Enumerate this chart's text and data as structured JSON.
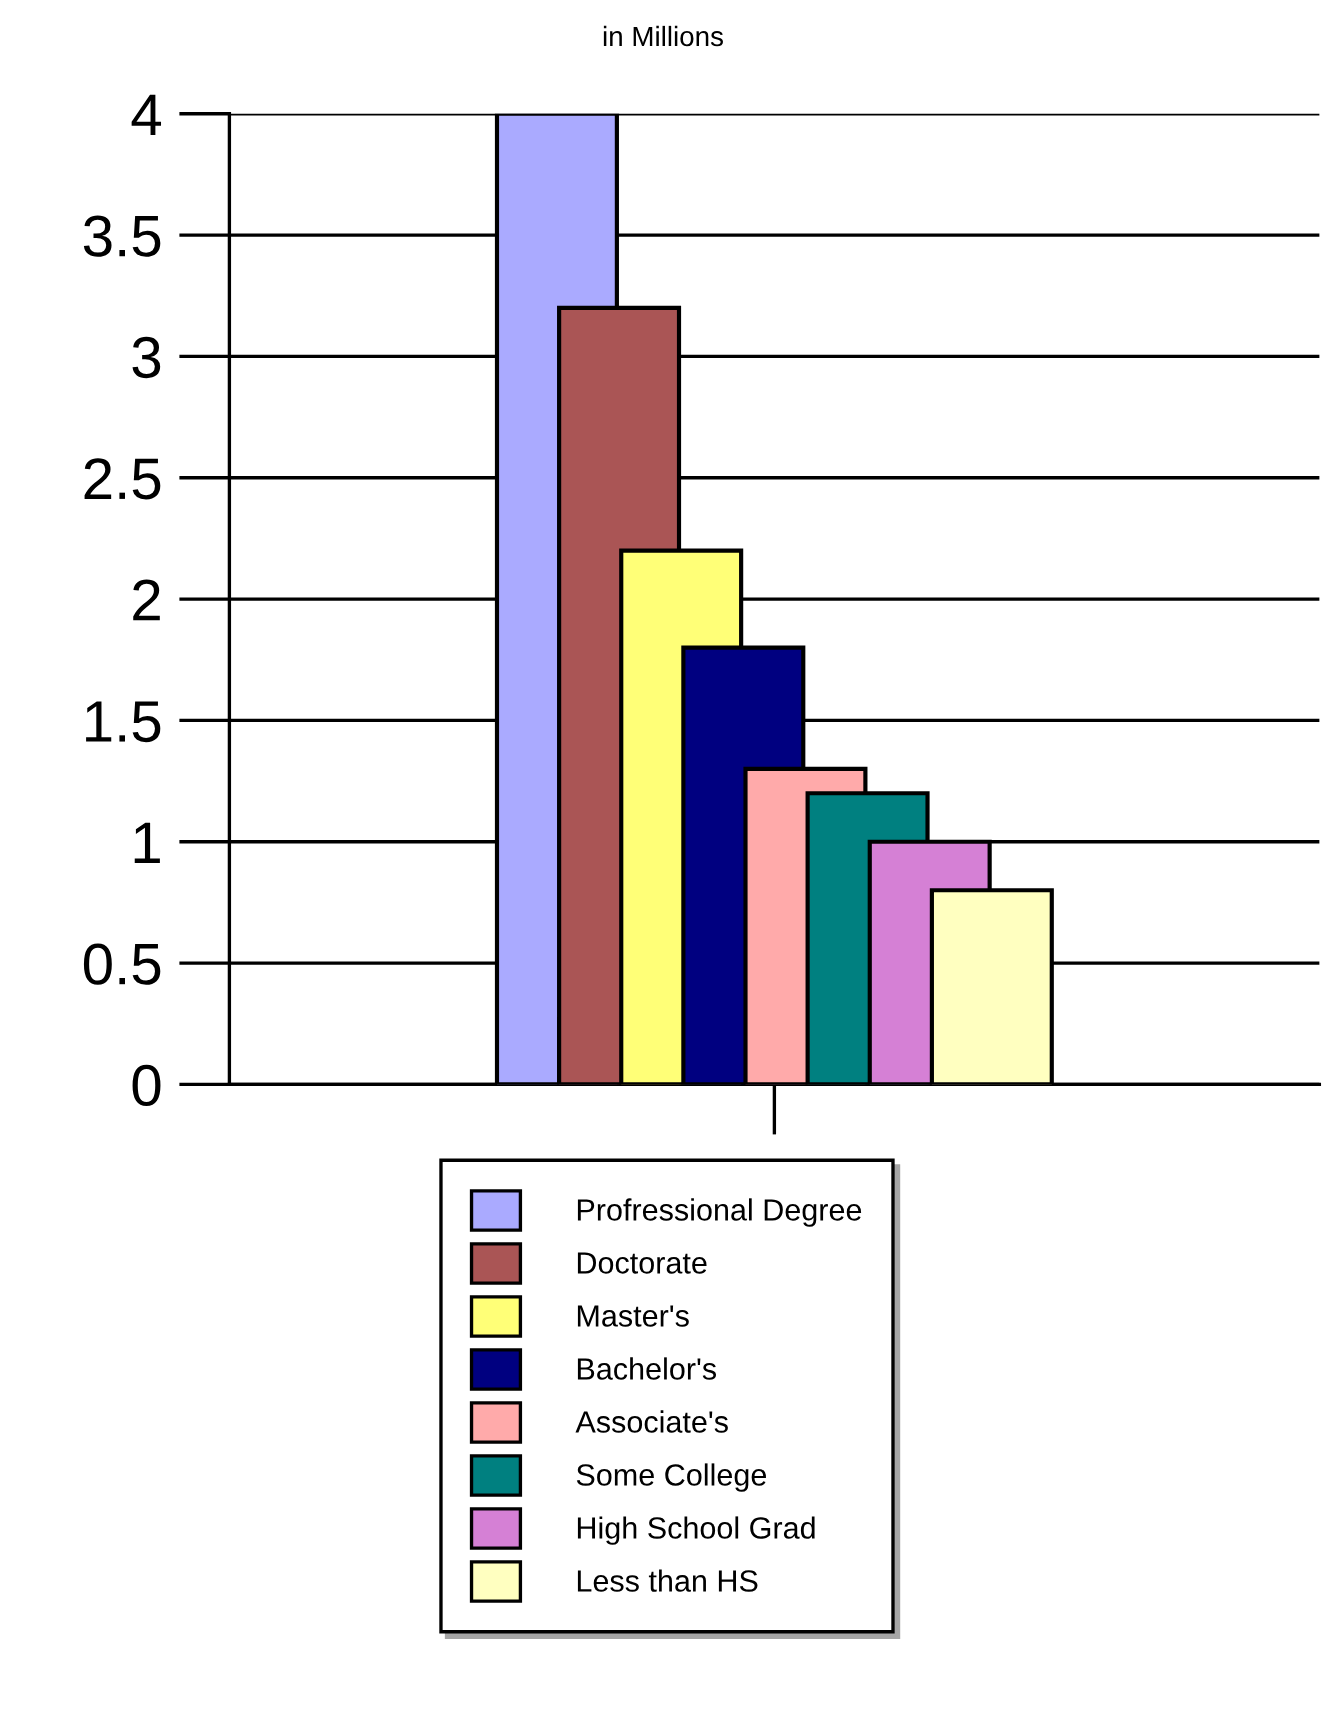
{
  "chart_data": {
    "type": "bar",
    "title": "in Millions",
    "categories": [
      null
    ],
    "series": [
      {
        "name": "Profressional Degree",
        "color": "#aaaaff",
        "values": [
          4.0
        ]
      },
      {
        "name": "Doctorate",
        "color": "#aa5555",
        "values": [
          3.2
        ]
      },
      {
        "name": "Master's",
        "color": "#ffff77",
        "values": [
          2.2
        ]
      },
      {
        "name": "Bachelor's",
        "color": "#000080",
        "values": [
          1.8
        ]
      },
      {
        "name": "Associate's",
        "color": "#ffaaaa",
        "values": [
          1.3
        ]
      },
      {
        "name": "Some College",
        "color": "#008080",
        "values": [
          1.2
        ]
      },
      {
        "name": "High School Grad",
        "color": "#d580d5",
        "values": [
          1.0
        ]
      },
      {
        "name": "Less than HS",
        "color": "#ffffc0",
        "values": [
          0.8
        ]
      }
    ],
    "ylim": [
      0,
      4
    ],
    "yticks": [
      0,
      0.5,
      1,
      1.5,
      2,
      2.5,
      3,
      3.5,
      4
    ],
    "grid": "y",
    "legend": "bottom",
    "tick_labels": "y"
  }
}
